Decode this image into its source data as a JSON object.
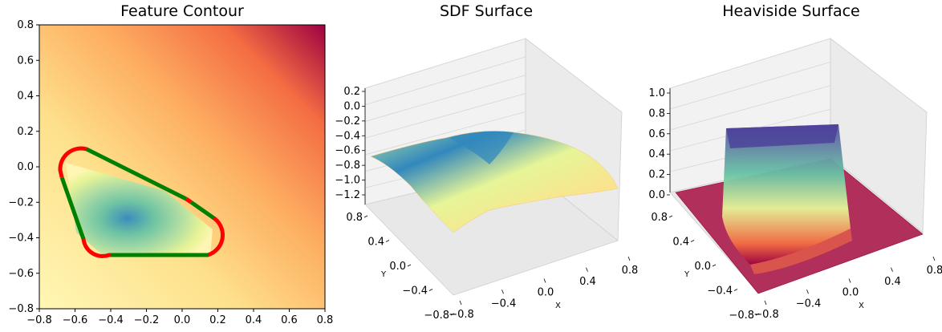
{
  "chart_data": [
    {
      "type": "heatmap",
      "title": "Feature Contour",
      "xlim": [
        -0.8,
        0.8
      ],
      "ylim": [
        -0.8,
        0.8
      ],
      "x_ticks": [
        "−0.8",
        "−0.6",
        "−0.4",
        "−0.2",
        "0.0",
        "0.2",
        "0.4",
        "0.6",
        "0.8"
      ],
      "y_ticks": [
        "0.8",
        "0.6",
        "0.4",
        "0.2",
        "0.0",
        "−0.2",
        "−0.4",
        "−0.6",
        "−0.8"
      ],
      "colormap": "Spectral",
      "contour_polygon": [
        [
          -0.55,
          0.05
        ],
        [
          0.2,
          -0.35
        ],
        [
          0.2,
          -0.45
        ],
        [
          -0.4,
          -0.45
        ],
        [
          -0.6,
          -0.3
        ],
        [
          -0.6,
          0.0
        ]
      ],
      "contour_colors": {
        "straight": "#008000",
        "corner": "#ff0000"
      }
    },
    {
      "type": "surface",
      "title": "SDF Surface",
      "xlabel": "X",
      "ylabel": "Y",
      "x_ticks": [
        "−0.8",
        "−0.4",
        "0.0",
        "0.4",
        "0.8"
      ],
      "y_ticks": [
        "−0.8",
        "−0.4",
        "0.0",
        "0.4",
        "0.8"
      ],
      "z_ticks": [
        "0.2",
        "0.0",
        "−0.2",
        "−0.4",
        "−0.6",
        "−0.8",
        "−1.0",
        "−1.2"
      ],
      "zlim": [
        -1.2,
        0.2
      ],
      "colormap": "Spectral"
    },
    {
      "type": "surface",
      "title": "Heaviside Surface",
      "xlabel": "X",
      "ylabel": "Y",
      "x_ticks": [
        "−0.8",
        "−0.4",
        "0.0",
        "0.4",
        "0.8"
      ],
      "y_ticks": [
        "−0.8",
        "−0.4",
        "0.0",
        "0.4",
        "0.8"
      ],
      "z_ticks": [
        "1.0",
        "0.8",
        "0.6",
        "0.4",
        "0.2",
        "0.0"
      ],
      "zlim": [
        0.0,
        1.0
      ],
      "colormap": "Spectral"
    }
  ]
}
